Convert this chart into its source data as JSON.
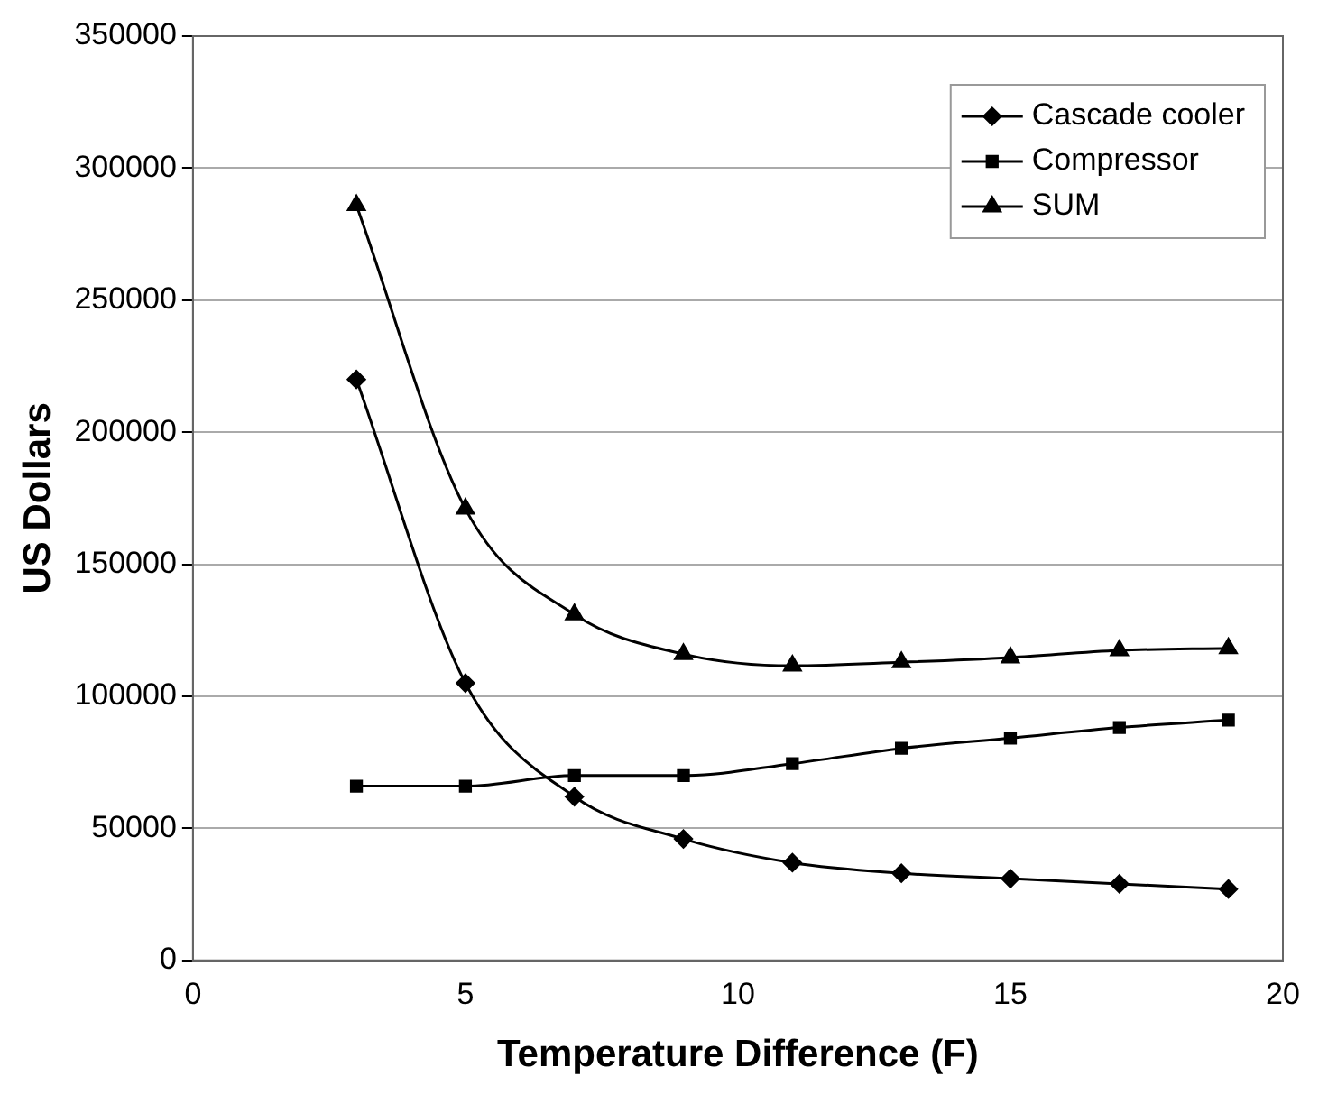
{
  "chart_data": {
    "type": "line",
    "xlabel": "Temperature Difference (F)",
    "ylabel": "US Dollars",
    "xlim": [
      0,
      20
    ],
    "xticks": [
      0,
      5,
      10,
      15,
      20
    ],
    "ylim": [
      0,
      350000
    ],
    "yticks": [
      0,
      50000,
      100000,
      150000,
      200000,
      250000,
      300000,
      350000
    ],
    "grid": "y",
    "legend": "top right",
    "series": [
      {
        "name": "Cascade cooler",
        "color": "#000000",
        "marker": "diamond",
        "x": [
          3,
          5,
          7,
          9,
          11,
          13,
          15,
          17,
          19
        ],
        "values": [
          220000,
          105000,
          62000,
          46000,
          37000,
          33000,
          31000,
          29000,
          27000
        ]
      },
      {
        "name": "Compressor",
        "color": "#000000",
        "marker": "square",
        "x": [
          3,
          5,
          7,
          9,
          11,
          13,
          15,
          17,
          19
        ],
        "values": [
          66000,
          66000,
          70000,
          70000,
          74500,
          80300,
          84200,
          88200,
          91000
        ]
      },
      {
        "name": "SUM",
        "color": "#000000",
        "marker": "triangle",
        "x": [
          3,
          5,
          7,
          9,
          11,
          13,
          15,
          17,
          19
        ],
        "values": [
          286000,
          171000,
          131000,
          116000,
          111600,
          112900,
          114700,
          117400,
          118200
        ]
      }
    ]
  }
}
